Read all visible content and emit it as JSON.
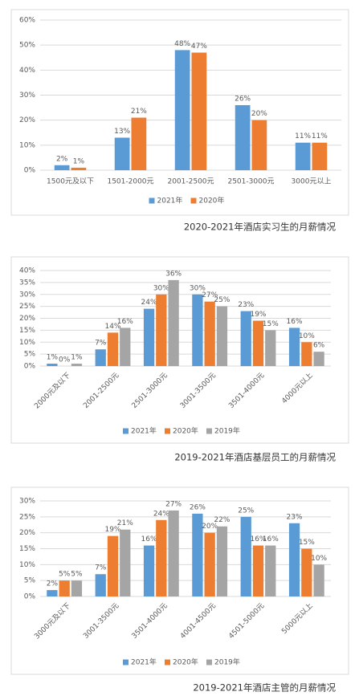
{
  "chart_data": [
    {
      "type": "bar",
      "caption": "2020-2021年酒店实习生的月薪情况",
      "categories": [
        "1500元及以下",
        "1501-2000元",
        "2001-2500元",
        "2501-3000元",
        "3000元以上"
      ],
      "series": [
        {
          "name": "2021年",
          "color": "#5b9bd5",
          "values": [
            2,
            13,
            48,
            26,
            11
          ],
          "value_labels": [
            "2%",
            "13%",
            "48%",
            "26%",
            "11%"
          ]
        },
        {
          "name": "2020年",
          "color": "#ed7d31",
          "values": [
            1,
            21,
            47,
            20,
            11
          ],
          "value_labels": [
            "1%",
            "21%",
            "47%",
            "20%",
            "11%"
          ]
        }
      ],
      "ylim": [
        0,
        60
      ],
      "yticks": [
        {
          "value": 0,
          "label": "0%"
        },
        {
          "value": 10,
          "label": "10%"
        },
        {
          "value": 20,
          "label": "20%"
        },
        {
          "value": 30,
          "label": "30%"
        },
        {
          "value": 40,
          "label": "40%"
        },
        {
          "value": 50,
          "label": "50%"
        },
        {
          "value": 60,
          "label": "60%"
        }
      ],
      "grid": true,
      "legend": "bottom"
    },
    {
      "type": "bar",
      "caption": "2019-2021年酒店基层员工的月薪情况",
      "categories": [
        "2000元及以下",
        "2001-2500元",
        "2501-3000元",
        "3001-3500元",
        "3501-4000元",
        "4000元以上"
      ],
      "series": [
        {
          "name": "2021年",
          "color": "#5b9bd5",
          "values": [
            1,
            7,
            24,
            30,
            23,
            16
          ],
          "value_labels": [
            "1%",
            "7%",
            "24%",
            "30%",
            "23%",
            "16%"
          ]
        },
        {
          "name": "2020年",
          "color": "#ed7d31",
          "values": [
            0,
            14,
            30,
            27,
            19,
            10
          ],
          "value_labels": [
            "0%",
            "14%",
            "30%",
            "27%",
            "19%",
            "10%"
          ]
        },
        {
          "name": "2019年",
          "color": "#a5a5a5",
          "values": [
            1,
            16,
            36,
            25,
            15,
            6
          ],
          "value_labels": [
            "1%",
            "16%",
            "36%",
            "25%",
            "15%",
            "6%"
          ]
        }
      ],
      "ylim": [
        0,
        40
      ],
      "yticks": [
        {
          "value": 0,
          "label": "0%"
        },
        {
          "value": 5,
          "label": "5%"
        },
        {
          "value": 10,
          "label": "10%"
        },
        {
          "value": 15,
          "label": "15%"
        },
        {
          "value": 20,
          "label": "20%"
        },
        {
          "value": 25,
          "label": "25%"
        },
        {
          "value": 30,
          "label": "30%"
        },
        {
          "value": 35,
          "label": "35%"
        },
        {
          "value": 40,
          "label": "40%"
        }
      ],
      "grid": true,
      "legend": "bottom"
    },
    {
      "type": "bar",
      "caption": "2019-2021年酒店主管的月薪情况",
      "categories": [
        "3000元及以下",
        "3001-3500元",
        "3501-4000元",
        "4001-4500元",
        "4501-5000元",
        "5000元以上"
      ],
      "series": [
        {
          "name": "2021年",
          "color": "#5b9bd5",
          "values": [
            2,
            7,
            16,
            26,
            25,
            23
          ],
          "value_labels": [
            "2%",
            "7%",
            "16%",
            "26%",
            "25%",
            "23%"
          ]
        },
        {
          "name": "2020年",
          "color": "#ed7d31",
          "values": [
            5,
            19,
            24,
            20,
            16,
            15
          ],
          "value_labels": [
            "5%",
            "19%",
            "24%",
            "20%",
            "16%",
            "15%"
          ]
        },
        {
          "name": "2019年",
          "color": "#a5a5a5",
          "values": [
            5,
            21,
            27,
            22,
            16,
            10
          ],
          "value_labels": [
            "5%",
            "21%",
            "27%",
            "22%",
            "16%",
            "10%"
          ]
        }
      ],
      "ylim": [
        0,
        30
      ],
      "yticks": [
        {
          "value": 0,
          "label": "0%"
        },
        {
          "value": 5,
          "label": "5%"
        },
        {
          "value": 10,
          "label": "10%"
        },
        {
          "value": 15,
          "label": "15%"
        },
        {
          "value": 20,
          "label": "20%"
        },
        {
          "value": 25,
          "label": "25%"
        },
        {
          "value": 30,
          "label": "30%"
        }
      ],
      "grid": true,
      "legend": "bottom"
    }
  ]
}
